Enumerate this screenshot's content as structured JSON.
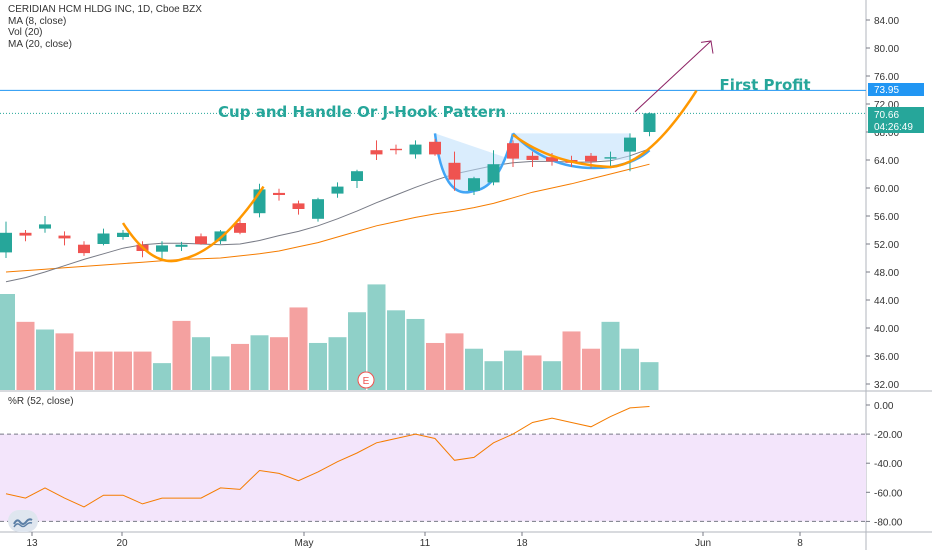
{
  "legend": {
    "title": "CERIDIAN HCM HLDG INC, 1D, Cboe BZX",
    "ma8": "MA (8, close)",
    "vol": "Vol (20)",
    "ma20": "MA (20, close)",
    "wr": "%R (52, close)"
  },
  "annotations": {
    "pattern_label": "Cup and Handle Or J-Hook Pattern",
    "target_label": "First Profit",
    "earnings_marker": "E"
  },
  "price_badges": {
    "target": "73.95",
    "last": "70.66",
    "countdown": "04:26:49"
  },
  "colors": {
    "up": "#26a69a",
    "down": "#ef5350",
    "ma8": "#787b86",
    "ma20": "#f57c00",
    "annotation_text": "#26a69a",
    "curve_orange": "#ff9800",
    "curve_blue": "#42a5f5",
    "cup_fill": "#bbdefb",
    "wr_band": "#f3e5fb",
    "wr_line": "#f57c00",
    "arrow": "#8e2466",
    "target_badge": "#2196f3",
    "last_badge": "#26a69a"
  },
  "chart_data": {
    "type": "candlestick",
    "symbol": "CERIDIAN HCM HLDG INC",
    "interval": "1D",
    "exchange": "Cboe BZX",
    "price_axis": {
      "ticks": [
        "84.00",
        "80.00",
        "76.00",
        "72.00",
        "68.00",
        "64.00",
        "60.00",
        "56.00",
        "52.00",
        "48.00",
        "44.00",
        "40.00",
        "36.00",
        "32.00"
      ]
    },
    "wr_axis": {
      "ticks": [
        "0.00",
        "-20.00",
        "-40.00",
        "-60.00",
        "-80.00"
      ]
    },
    "x_ticks": [
      "13",
      "20",
      "May",
      "11",
      "18",
      "Jun",
      "8"
    ],
    "candles": [
      {
        "o": 50.8,
        "h": 55.2,
        "l": 50.0,
        "c": 53.6
      },
      {
        "o": 53.6,
        "h": 54.0,
        "l": 52.4,
        "c": 53.2
      },
      {
        "o": 54.2,
        "h": 56.0,
        "l": 53.6,
        "c": 54.8
      },
      {
        "o": 53.2,
        "h": 53.8,
        "l": 51.8,
        "c": 52.8
      },
      {
        "o": 51.9,
        "h": 52.4,
        "l": 50.3,
        "c": 50.7
      },
      {
        "o": 52.0,
        "h": 54.2,
        "l": 51.8,
        "c": 53.5
      },
      {
        "o": 53.0,
        "h": 54.0,
        "l": 52.6,
        "c": 53.6
      },
      {
        "o": 51.9,
        "h": 52.4,
        "l": 50.1,
        "c": 51.0
      },
      {
        "o": 50.9,
        "h": 52.4,
        "l": 49.8,
        "c": 51.8
      },
      {
        "o": 51.6,
        "h": 52.3,
        "l": 51.0,
        "c": 51.9
      },
      {
        "o": 53.1,
        "h": 53.5,
        "l": 51.9,
        "c": 52.0
      },
      {
        "o": 52.4,
        "h": 54.0,
        "l": 52.0,
        "c": 53.8
      },
      {
        "o": 55.0,
        "h": 55.6,
        "l": 53.4,
        "c": 53.6
      },
      {
        "o": 56.4,
        "h": 60.6,
        "l": 55.8,
        "c": 59.8
      },
      {
        "o": 59.3,
        "h": 59.9,
        "l": 58.2,
        "c": 59.0
      },
      {
        "o": 57.8,
        "h": 58.2,
        "l": 56.2,
        "c": 57.0
      },
      {
        "o": 55.6,
        "h": 58.6,
        "l": 55.2,
        "c": 58.4
      },
      {
        "o": 59.2,
        "h": 60.8,
        "l": 58.6,
        "c": 60.2
      },
      {
        "o": 61.0,
        "h": 62.6,
        "l": 60.0,
        "c": 62.4
      },
      {
        "o": 65.4,
        "h": 66.8,
        "l": 64.0,
        "c": 64.8
      },
      {
        "o": 65.6,
        "h": 66.2,
        "l": 64.8,
        "c": 65.4
      },
      {
        "o": 64.8,
        "h": 66.8,
        "l": 64.2,
        "c": 66.2
      },
      {
        "o": 66.6,
        "h": 67.0,
        "l": 64.6,
        "c": 64.8
      },
      {
        "o": 63.6,
        "h": 65.2,
        "l": 59.6,
        "c": 61.2
      },
      {
        "o": 59.6,
        "h": 61.6,
        "l": 59.0,
        "c": 61.4
      },
      {
        "o": 60.8,
        "h": 65.4,
        "l": 60.4,
        "c": 63.4
      },
      {
        "o": 66.4,
        "h": 66.8,
        "l": 63.0,
        "c": 64.2
      },
      {
        "o": 64.6,
        "h": 65.2,
        "l": 63.0,
        "c": 64.0
      },
      {
        "o": 64.4,
        "h": 65.0,
        "l": 63.2,
        "c": 63.8
      },
      {
        "o": 64.0,
        "h": 64.6,
        "l": 63.0,
        "c": 63.6
      },
      {
        "o": 64.6,
        "h": 65.0,
        "l": 62.8,
        "c": 63.8
      },
      {
        "o": 64.2,
        "h": 65.2,
        "l": 63.0,
        "c": 64.4
      },
      {
        "o": 65.2,
        "h": 67.8,
        "l": 62.4,
        "c": 67.2
      },
      {
        "o": 68.0,
        "h": 70.8,
        "l": 67.4,
        "c": 70.66
      }
    ],
    "volume": [
      {
        "v": 1.0,
        "up": true
      },
      {
        "v": 0.71,
        "up": false
      },
      {
        "v": 0.63,
        "up": true
      },
      {
        "v": 0.59,
        "up": false
      },
      {
        "v": 0.4,
        "up": false
      },
      {
        "v": 0.4,
        "up": false
      },
      {
        "v": 0.4,
        "up": false
      },
      {
        "v": 0.4,
        "up": false
      },
      {
        "v": 0.28,
        "up": true
      },
      {
        "v": 0.72,
        "up": false
      },
      {
        "v": 0.55,
        "up": true
      },
      {
        "v": 0.35,
        "up": true
      },
      {
        "v": 0.48,
        "up": false
      },
      {
        "v": 0.57,
        "up": true
      },
      {
        "v": 0.55,
        "up": false
      },
      {
        "v": 0.86,
        "up": false
      },
      {
        "v": 0.49,
        "up": true
      },
      {
        "v": 0.55,
        "up": true
      },
      {
        "v": 0.81,
        "up": true
      },
      {
        "v": 1.1,
        "up": true
      },
      {
        "v": 0.83,
        "up": true
      },
      {
        "v": 0.74,
        "up": true
      },
      {
        "v": 0.49,
        "up": false
      },
      {
        "v": 0.59,
        "up": false
      },
      {
        "v": 0.43,
        "up": true
      },
      {
        "v": 0.3,
        "up": true
      },
      {
        "v": 0.41,
        "up": true
      },
      {
        "v": 0.36,
        "up": false
      },
      {
        "v": 0.3,
        "up": true
      },
      {
        "v": 0.61,
        "up": false
      },
      {
        "v": 0.43,
        "up": false
      },
      {
        "v": 0.71,
        "up": true
      },
      {
        "v": 0.43,
        "up": true
      },
      {
        "v": 0.29,
        "up": true
      }
    ],
    "ma8": [
      46.6,
      47.2,
      48.0,
      48.9,
      49.8,
      50.6,
      51.4,
      51.9,
      52.1,
      52.1,
      52.0,
      51.9,
      52.0,
      52.5,
      53.2,
      53.8,
      54.6,
      55.6,
      56.7,
      57.9,
      59.0,
      60.1,
      61.1,
      62.0,
      62.6,
      63.2,
      63.6,
      63.8,
      63.8,
      63.7,
      63.7,
      63.9,
      64.6,
      65.6
    ],
    "ma20": [
      48.0,
      48.2,
      48.4,
      48.6,
      48.8,
      49.0,
      49.2,
      49.4,
      49.6,
      49.8,
      49.9,
      50.0,
      50.3,
      50.6,
      51.0,
      51.6,
      52.2,
      53.0,
      53.8,
      54.6,
      55.2,
      55.8,
      56.3,
      56.7,
      57.2,
      57.8,
      58.6,
      59.4,
      60.0,
      60.6,
      61.3,
      62.0,
      62.7,
      63.4
    ],
    "williams_r": [
      -61,
      -64,
      -57,
      -64,
      -70,
      -62,
      -62,
      -68,
      -64,
      -64,
      -64,
      -57,
      -58,
      -45,
      -47,
      -52,
      -46,
      -39,
      -33,
      -26,
      -23,
      -20,
      -23,
      -38,
      -36,
      -26,
      -20,
      -12,
      -9,
      -12,
      -15,
      -8,
      -2,
      -1
    ]
  }
}
